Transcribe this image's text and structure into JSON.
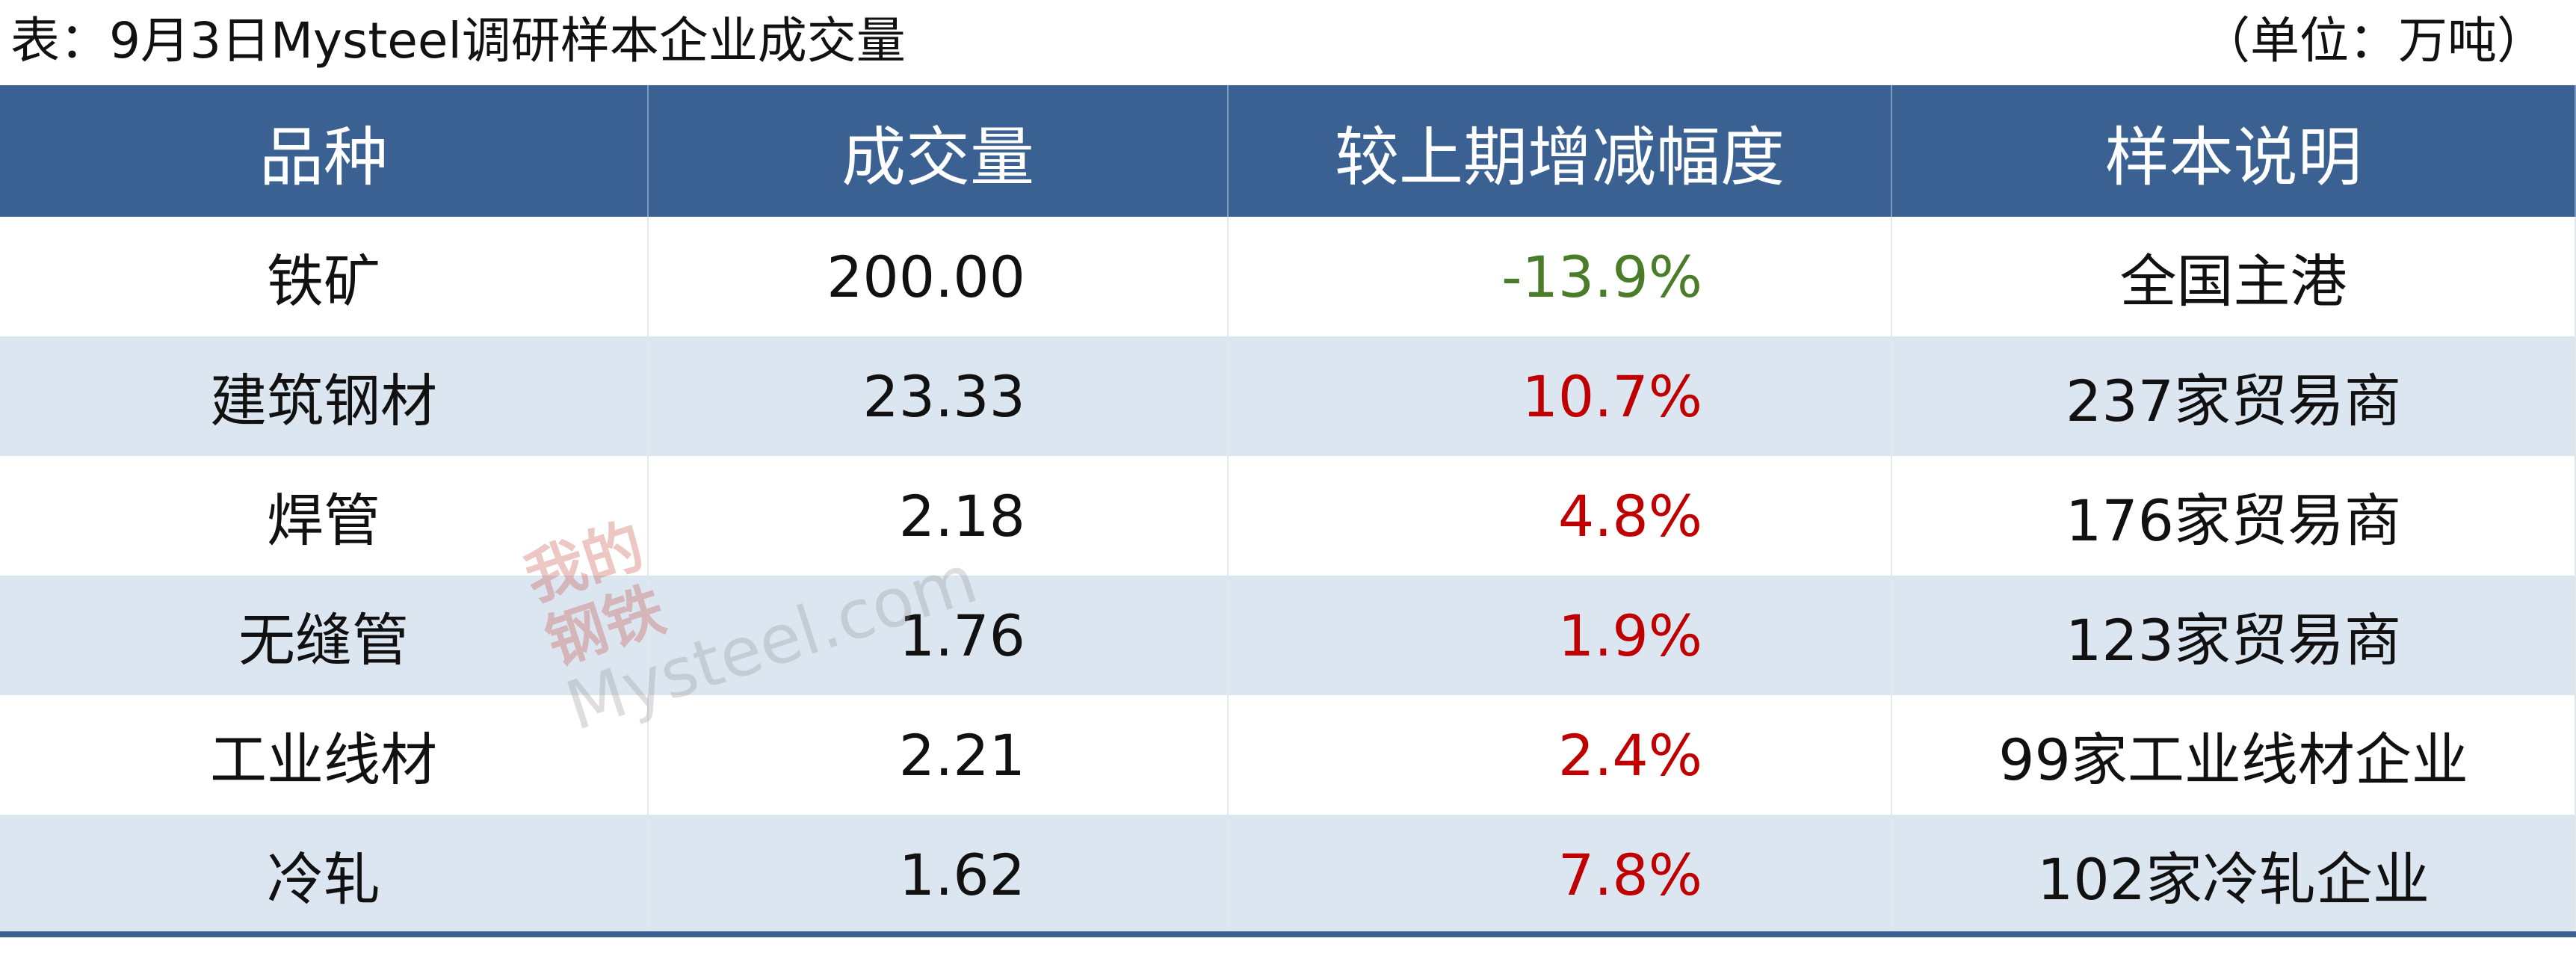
{
  "header": {
    "title": "表：9月3日Mysteel调研样本企业成交量",
    "unit": "（单位：万吨）"
  },
  "table": {
    "columns": [
      "品种",
      "成交量",
      "较上期增减幅度",
      "样本说明"
    ],
    "rows": [
      [
        "铁矿",
        "200.00",
        "-13.9%",
        "全国主港"
      ],
      [
        "建筑钢材",
        "23.33",
        "10.7%",
        "237家贸易商"
      ],
      [
        "焊管",
        "2.18",
        "4.8%",
        "176家贸易商"
      ],
      [
        "无缝管",
        "1.76",
        "1.9%",
        "123家贸易商"
      ],
      [
        "工业线材",
        "2.21",
        "2.4%",
        "99家工业线材企业"
      ],
      [
        "冷轧",
        "1.62",
        "7.8%",
        "102家冷轧企业"
      ]
    ]
  },
  "watermark": [
    "我的",
    "钢铁",
    "Mysteel.com"
  ]
}
